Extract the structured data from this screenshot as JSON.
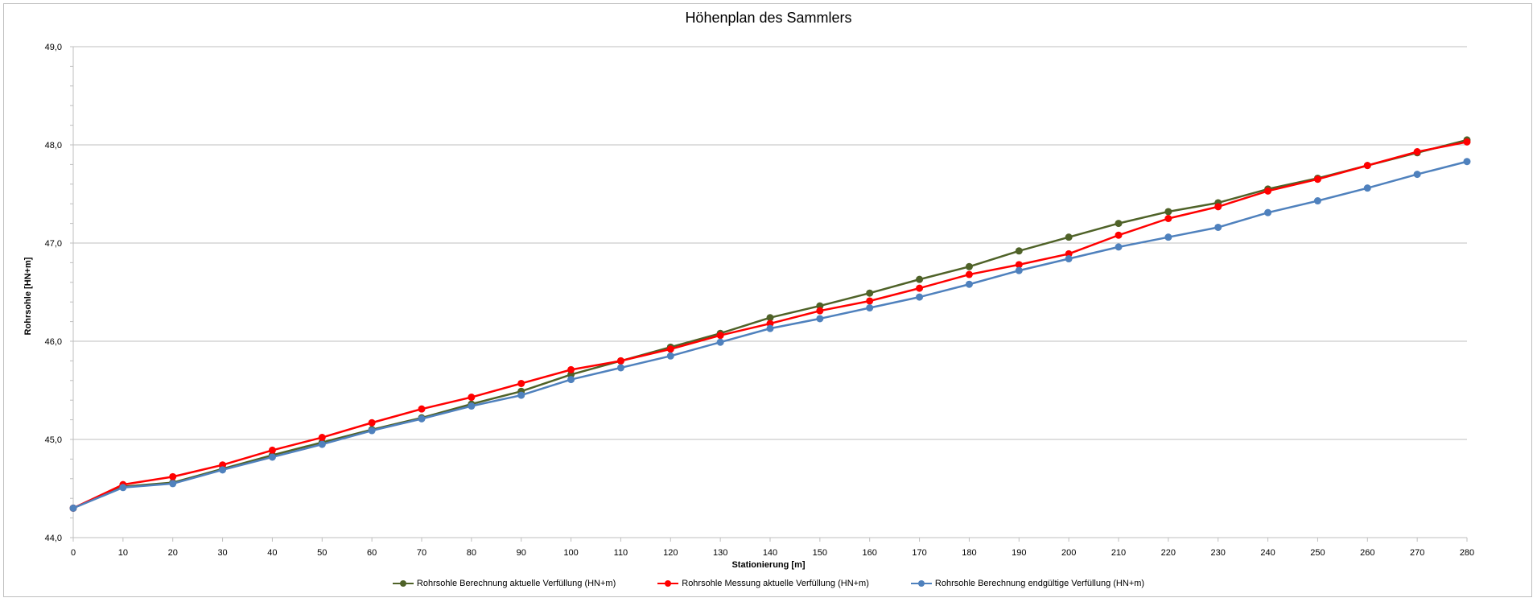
{
  "chart_data": {
    "type": "line",
    "title": "Höhenplan des Sammlers",
    "xlabel": "Stationierung [m]",
    "ylabel": "Rohrsohle [HN+m]",
    "xlim": [
      0,
      280
    ],
    "ylim": [
      44.0,
      49.0
    ],
    "x_ticks": [
      "0",
      "10",
      "20",
      "30",
      "40",
      "50",
      "60",
      "70",
      "80",
      "90",
      "100",
      "110",
      "120",
      "130",
      "140",
      "150",
      "160",
      "170",
      "180",
      "190",
      "200",
      "210",
      "220",
      "230",
      "240",
      "250",
      "260",
      "270",
      "280"
    ],
    "y_ticks": [
      "44,0",
      "45,0",
      "46,0",
      "47,0",
      "48,0",
      "49,0"
    ],
    "y_tick_values": [
      44.0,
      45.0,
      46.0,
      47.0,
      48.0,
      49.0
    ],
    "grid": true,
    "legend_position": "bottom",
    "x": [
      0,
      10,
      20,
      30,
      40,
      50,
      60,
      70,
      80,
      90,
      100,
      110,
      120,
      130,
      140,
      150,
      160,
      170,
      180,
      190,
      200,
      210,
      220,
      230,
      240,
      250,
      260,
      270,
      280
    ],
    "series": [
      {
        "name": "Rohrsohle Berechnung aktuelle Verfüllung (HN+m)",
        "color": "#4f6228",
        "values": [
          44.3,
          44.52,
          44.56,
          44.7,
          44.84,
          44.97,
          45.1,
          45.22,
          45.36,
          45.49,
          45.66,
          45.8,
          45.94,
          46.08,
          46.24,
          46.36,
          46.49,
          46.63,
          46.76,
          46.92,
          47.06,
          47.2,
          47.32,
          47.41,
          47.55,
          47.66,
          47.79,
          47.92,
          48.05
        ]
      },
      {
        "name": "Rohrsohle Messung aktuelle Verfüllung (HN+m)",
        "color": "#ff0000",
        "values": [
          44.3,
          44.54,
          44.62,
          44.74,
          44.89,
          45.02,
          45.17,
          45.31,
          45.43,
          45.57,
          45.71,
          45.8,
          45.92,
          46.06,
          46.18,
          46.31,
          46.41,
          46.54,
          46.68,
          46.78,
          46.89,
          47.08,
          47.25,
          47.37,
          47.53,
          47.65,
          47.79,
          47.93,
          48.03
        ]
      },
      {
        "name": "Rohrsohle Berechnung endgültige Verfüllung (HN+m)",
        "color": "#4f81bd",
        "values": [
          44.3,
          44.51,
          44.55,
          44.69,
          44.82,
          44.95,
          45.09,
          45.21,
          45.34,
          45.45,
          45.61,
          45.73,
          45.85,
          45.99,
          46.13,
          46.23,
          46.34,
          46.45,
          46.58,
          46.72,
          46.84,
          46.96,
          47.06,
          47.16,
          47.31,
          47.43,
          47.56,
          47.7,
          47.83
        ]
      }
    ]
  }
}
